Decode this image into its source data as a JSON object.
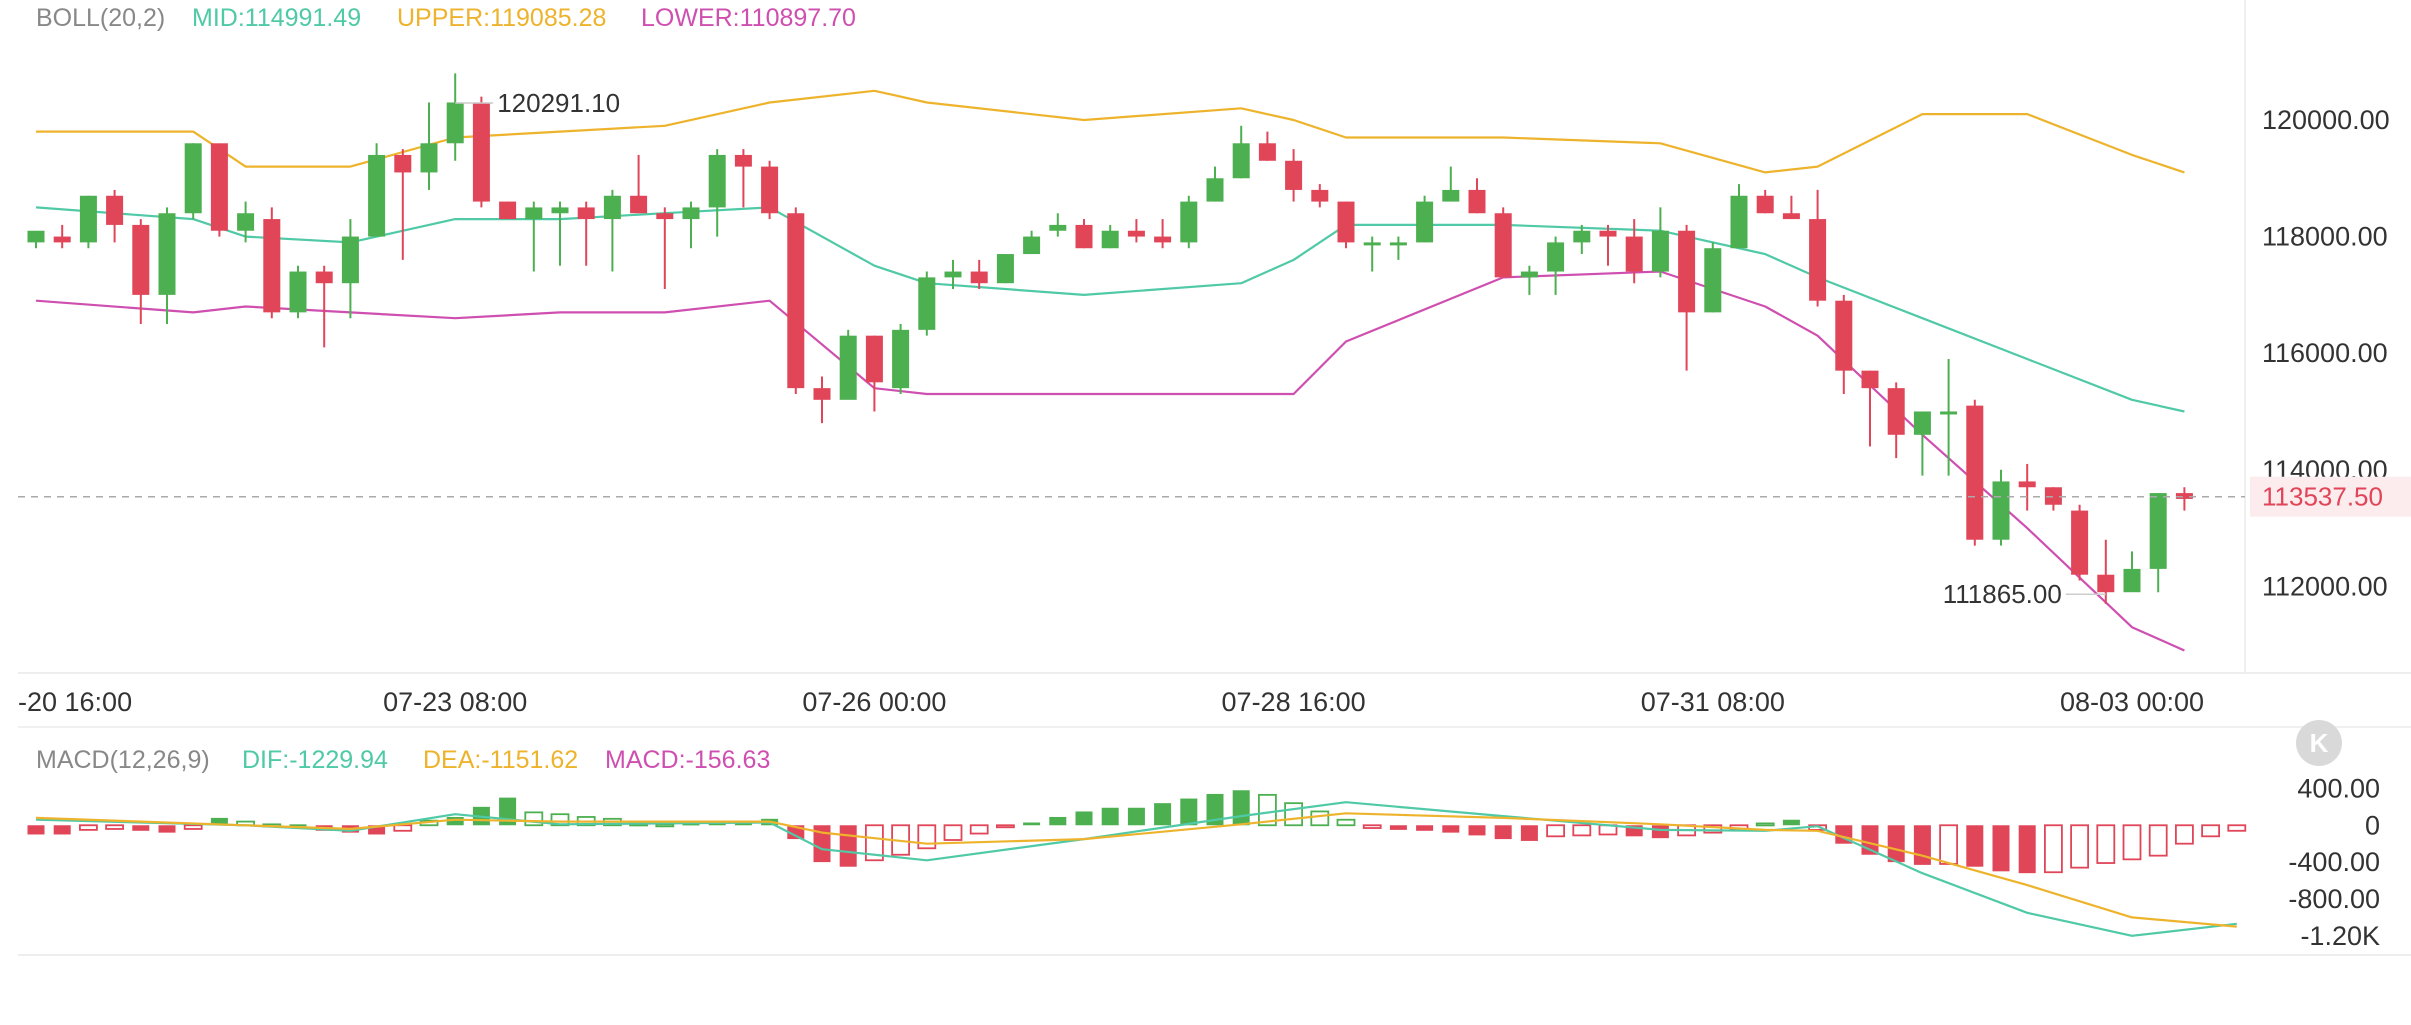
{
  "indicators": {
    "boll": {
      "name": "BOLL(20,2)",
      "mid": "MID:114991.49",
      "upper": "UPPER:119085.28",
      "lower": "LOWER:110897.70"
    },
    "macd": {
      "name": "MACD(12,26,9)",
      "dif": "DIF:-1229.94",
      "dea": "DEA:-1151.62",
      "macd": "MACD:-156.63"
    }
  },
  "price_tag": {
    "text": "113537.50",
    "value": 113537.5
  },
  "annotations": {
    "high": {
      "text": "120291.10",
      "value": 120291.1
    },
    "low": {
      "text": "111865.00",
      "value": 111865.0
    }
  },
  "collapse_icon": "collapse-left-icon",
  "colors": {
    "up": "#4caf50",
    "down": "#e04558",
    "mid": "#4fc9a6",
    "upper": "#eeb32c",
    "lower": "#cf4fb0",
    "price_tag": "#e04558"
  },
  "chart_data": [
    {
      "type": "candlestick",
      "x_tick_labels": [
        "-20 16:00",
        "07-23 08:00",
        "07-26 00:00",
        "07-28 16:00",
        "07-31 08:00",
        "08-03 00:00"
      ],
      "x_tick_index": [
        0,
        16,
        32,
        48,
        64,
        80
      ],
      "y_tick_labels": [
        "120000.00",
        "118000.00",
        "116000.00",
        "114000.00",
        "112000.00"
      ],
      "y_ticks": [
        120000,
        118000,
        116000,
        114000,
        112000
      ],
      "ylim": [
        110600,
        121200
      ],
      "current_price": 113537.5,
      "candles_ohlc": [
        [
          117900,
          118100,
          117800,
          118000
        ],
        [
          118000,
          117900,
          117800,
          118200
        ],
        [
          117900,
          118700,
          117800,
          118700
        ],
        [
          118700,
          118200,
          117900,
          118800
        ],
        [
          118200,
          117000,
          116500,
          118300
        ],
        [
          117000,
          118400,
          116500,
          118500
        ],
        [
          118400,
          119600,
          118300,
          119600
        ],
        [
          119600,
          118100,
          118000,
          119500
        ],
        [
          118100,
          118400,
          117900,
          118600
        ],
        [
          118300,
          116700,
          116600,
          118500
        ],
        [
          116700,
          117400,
          116600,
          117500
        ],
        [
          117400,
          117200,
          116100,
          117500
        ],
        [
          117200,
          118000,
          116600,
          118300
        ],
        [
          118000,
          119400,
          118000,
          119600
        ],
        [
          119400,
          119100,
          117600,
          119500
        ],
        [
          119100,
          119600,
          118800,
          120300
        ],
        [
          119600,
          120300,
          119300,
          120800
        ],
        [
          120300,
          118600,
          118500,
          120400
        ],
        [
          118600,
          118300,
          118300,
          118600
        ],
        [
          118300,
          118500,
          117400,
          118600
        ],
        [
          118400,
          118500,
          117500,
          118600
        ],
        [
          118500,
          118300,
          117500,
          118600
        ],
        [
          118300,
          118700,
          117400,
          118800
        ],
        [
          118700,
          118400,
          118500,
          119400
        ],
        [
          118400,
          118300,
          117100,
          118500
        ],
        [
          118300,
          118500,
          117800,
          118600
        ],
        [
          118500,
          119400,
          118000,
          119500
        ],
        [
          119400,
          119200,
          118500,
          119500
        ],
        [
          119200,
          118400,
          118300,
          119300
        ],
        [
          118400,
          115400,
          115300,
          118500
        ],
        [
          115400,
          115200,
          114800,
          115600
        ],
        [
          115200,
          116300,
          115500,
          116400
        ],
        [
          116300,
          115500,
          115000,
          116300
        ],
        [
          115400,
          116400,
          115300,
          116500
        ],
        [
          116400,
          117300,
          116300,
          117400
        ],
        [
          117300,
          117400,
          117100,
          117600
        ],
        [
          117400,
          117200,
          117100,
          117600
        ],
        [
          117200,
          117700,
          117200,
          117700
        ],
        [
          117700,
          118000,
          117700,
          118100
        ],
        [
          118100,
          118200,
          118000,
          118400
        ],
        [
          118200,
          117800,
          117800,
          118300
        ],
        [
          117800,
          118100,
          117800,
          118200
        ],
        [
          118100,
          118000,
          117900,
          118300
        ],
        [
          118000,
          117900,
          117800,
          118300
        ],
        [
          117900,
          118600,
          117800,
          118700
        ],
        [
          118600,
          119000,
          118600,
          119200
        ],
        [
          119000,
          119600,
          119000,
          119900
        ],
        [
          119600,
          119300,
          119300,
          119800
        ],
        [
          119300,
          118800,
          118600,
          119500
        ],
        [
          118800,
          118600,
          118500,
          118900
        ],
        [
          118600,
          117900,
          117800,
          118600
        ],
        [
          117900,
          117900,
          117400,
          118000
        ],
        [
          117900,
          117900,
          117600,
          118000
        ],
        [
          117900,
          118600,
          117900,
          118700
        ],
        [
          118600,
          118800,
          118600,
          119200
        ],
        [
          118800,
          118400,
          118400,
          119000
        ],
        [
          118400,
          117300,
          117300,
          118500
        ],
        [
          117300,
          117400,
          117000,
          117500
        ],
        [
          117400,
          117900,
          117000,
          118000
        ],
        [
          117900,
          118100,
          117700,
          118200
        ],
        [
          118100,
          118000,
          117500,
          118200
        ],
        [
          118000,
          117400,
          117200,
          118300
        ],
        [
          117400,
          118100,
          117300,
          118500
        ],
        [
          118100,
          116700,
          115700,
          118200
        ],
        [
          116700,
          117800,
          116700,
          117900
        ],
        [
          117800,
          118700,
          117800,
          118900
        ],
        [
          118700,
          118400,
          118400,
          118800
        ],
        [
          118400,
          118300,
          118300,
          118700
        ],
        [
          118300,
          116900,
          116800,
          118800
        ],
        [
          116900,
          115700,
          115300,
          117000
        ],
        [
          115700,
          115400,
          114400,
          115700
        ],
        [
          115400,
          114600,
          114200,
          115500
        ],
        [
          114600,
          115000,
          113900,
          115000
        ],
        [
          115000,
          115000,
          113900,
          115900
        ],
        [
          115100,
          112800,
          112700,
          115200
        ],
        [
          112800,
          113800,
          112700,
          114000
        ],
        [
          113800,
          113700,
          113300,
          114100
        ],
        [
          113700,
          113400,
          113300,
          113700
        ],
        [
          113300,
          112200,
          112100,
          113400
        ],
        [
          112200,
          111900,
          111700,
          112800
        ],
        [
          111900,
          112300,
          112000,
          112600
        ],
        [
          112300,
          113600,
          111900,
          113600
        ],
        [
          113600,
          113500,
          113300,
          113700
        ]
      ],
      "bollinger": {
        "x_index": [
          0,
          6,
          8,
          12,
          16,
          20,
          24,
          28,
          32,
          34,
          40,
          46,
          48,
          50,
          56,
          62,
          66,
          68,
          72,
          76,
          80,
          82
        ],
        "mid": [
          118500,
          118300,
          118000,
          117900,
          118300,
          118300,
          118400,
          118500,
          117500,
          117200,
          117000,
          117200,
          117600,
          118200,
          118200,
          118100,
          117700,
          117300,
          116600,
          115900,
          115200,
          115000
        ],
        "upper": [
          119800,
          119800,
          119200,
          119200,
          119700,
          119800,
          119900,
          120300,
          120500,
          120300,
          120000,
          120200,
          120000,
          119700,
          119700,
          119600,
          119100,
          119200,
          120100,
          120100,
          119400,
          119100
        ],
        "lower": [
          116900,
          116700,
          116800,
          116700,
          116600,
          116700,
          116700,
          116900,
          115400,
          115300,
          115300,
          115300,
          115300,
          116200,
          117300,
          117400,
          116800,
          116300,
          114600,
          113000,
          111300,
          110900
        ]
      }
    },
    {
      "type": "bar",
      "name": "MACD",
      "y_tick_labels": [
        "400.00",
        "0",
        "-400.00",
        "-800.00",
        "-1.20K"
      ],
      "y_ticks": [
        400,
        0,
        -400,
        -800,
        -1200
      ],
      "ylim": [
        -1300,
        600
      ],
      "histogram": [
        -100,
        -100,
        -50,
        -40,
        -60,
        -80,
        -40,
        80,
        40,
        10,
        10,
        -60,
        -80,
        -100,
        -60,
        50,
        90,
        200,
        300,
        140,
        120,
        90,
        70,
        20,
        10,
        20,
        30,
        50,
        70,
        -150,
        -400,
        -450,
        -380,
        -320,
        -250,
        -160,
        -90,
        -20,
        30,
        90,
        150,
        190,
        190,
        240,
        290,
        340,
        380,
        330,
        240,
        150,
        60,
        -30,
        -50,
        -60,
        -80,
        -110,
        -150,
        -170,
        -120,
        -110,
        -100,
        -120,
        -140,
        -110,
        -80,
        -40,
        20,
        60,
        -50,
        -200,
        -320,
        -400,
        -430,
        -420,
        -450,
        -500,
        -520,
        -510,
        -460,
        -410,
        -370,
        -330,
        -200,
        -120,
        -60
      ],
      "dif": {
        "x_index": [
          0,
          8,
          12,
          16,
          20,
          28,
          30,
          34,
          40,
          46,
          50,
          56,
          62,
          66,
          68,
          72,
          76,
          80,
          84
        ],
        "values": [
          60,
          0,
          -60,
          120,
          10,
          30,
          -260,
          -380,
          -150,
          100,
          250,
          100,
          -50,
          -60,
          -10,
          -520,
          -950,
          -1200,
          -1070
        ]
      },
      "dea": {
        "x_index": [
          0,
          8,
          12,
          16,
          20,
          28,
          30,
          34,
          40,
          46,
          50,
          56,
          62,
          66,
          68,
          72,
          76,
          80,
          84
        ],
        "values": [
          80,
          0,
          -40,
          60,
          40,
          40,
          -80,
          -200,
          -150,
          10,
          130,
          80,
          10,
          -50,
          -60,
          -330,
          -650,
          -1000,
          -1100
        ]
      }
    }
  ]
}
